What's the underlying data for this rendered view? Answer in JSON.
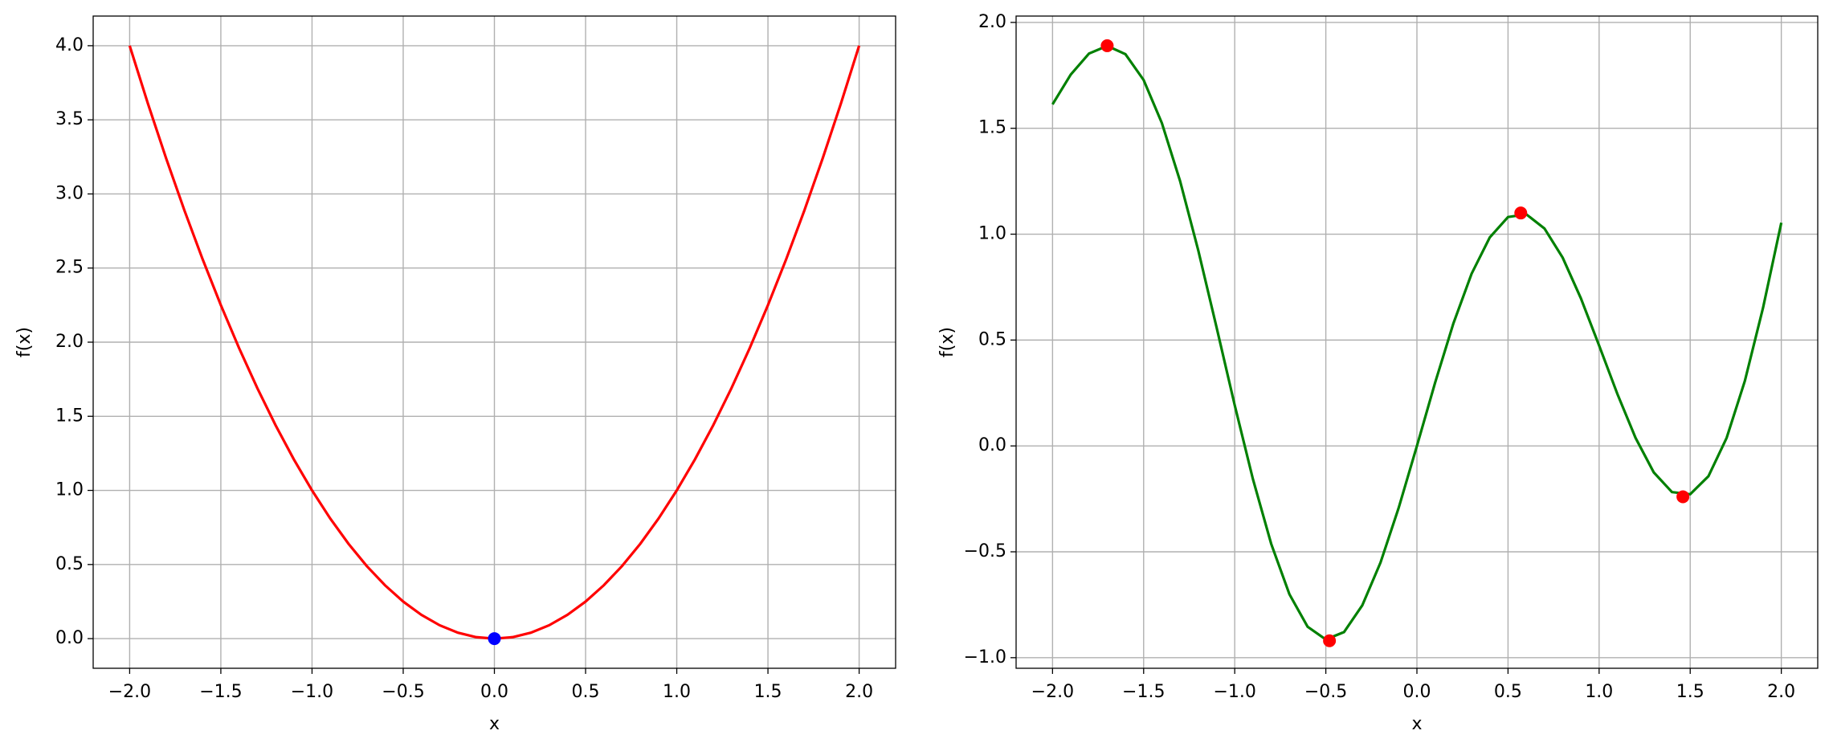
{
  "chart_data": [
    {
      "type": "line",
      "xlabel": "x",
      "ylabel": "f(x)",
      "grid": true,
      "xlim": [
        -2.2,
        2.2
      ],
      "ylim": [
        -0.2,
        4.2
      ],
      "xticks": [
        {
          "value": -2.0,
          "label": "−2.0"
        },
        {
          "value": -1.5,
          "label": "−1.5"
        },
        {
          "value": -1.0,
          "label": "−1.0"
        },
        {
          "value": -0.5,
          "label": "−0.5"
        },
        {
          "value": 0,
          "label": "0.0"
        },
        {
          "value": 0.5,
          "label": "0.5"
        },
        {
          "value": 1.0,
          "label": "1.0"
        },
        {
          "value": 1.5,
          "label": "1.5"
        },
        {
          "value": 2.0,
          "label": "2.0"
        }
      ],
      "yticks": [
        {
          "value": 0,
          "label": "0.0"
        },
        {
          "value": 0.5,
          "label": "0.5"
        },
        {
          "value": 1.0,
          "label": "1.0"
        },
        {
          "value": 1.5,
          "label": "1.5"
        },
        {
          "value": 2.0,
          "label": "2.0"
        },
        {
          "value": 2.5,
          "label": "2.5"
        },
        {
          "value": 3.0,
          "label": "3.0"
        },
        {
          "value": 3.5,
          "label": "3.5"
        },
        {
          "value": 4.0,
          "label": "4.0"
        }
      ],
      "series": [
        {
          "kind": "line",
          "color": "#ff0000",
          "x": [
            -2.0,
            -1.9,
            -1.8,
            -1.7,
            -1.6,
            -1.5,
            -1.4,
            -1.3,
            -1.2,
            -1.1,
            -1.0,
            -0.9,
            -0.8,
            -0.7,
            -0.6,
            -0.5,
            -0.4,
            -0.3,
            -0.2,
            -0.1,
            0,
            0.1,
            0.2,
            0.3,
            0.4,
            0.5,
            0.6,
            0.7,
            0.8,
            0.9,
            1.0,
            1.1,
            1.2,
            1.3,
            1.4,
            1.5,
            1.6,
            1.7,
            1.8,
            1.9,
            2.0
          ],
          "values": [
            4.0,
            3.61,
            3.24,
            2.89,
            2.56,
            2.25,
            1.96,
            1.69,
            1.44,
            1.21,
            1.0,
            0.81,
            0.64,
            0.49,
            0.36,
            0.25,
            0.16,
            0.09,
            0.04,
            0.01,
            0,
            0.01,
            0.04,
            0.09,
            0.16,
            0.25,
            0.36,
            0.49,
            0.64,
            0.81,
            1.0,
            1.21,
            1.44,
            1.69,
            1.96,
            2.25,
            2.56,
            2.89,
            3.24,
            3.61,
            4.0
          ]
        },
        {
          "kind": "scatter",
          "color": "#0000ff",
          "x": [
            0
          ],
          "values": [
            0
          ]
        }
      ]
    },
    {
      "type": "line",
      "xlabel": "x",
      "ylabel": "f(x)",
      "grid": true,
      "xlim": [
        -2.2,
        2.2
      ],
      "ylim": [
        -1.05,
        2.03
      ],
      "xticks": [
        {
          "value": -2.0,
          "label": "−2.0"
        },
        {
          "value": -1.5,
          "label": "−1.5"
        },
        {
          "value": -1.0,
          "label": "−1.0"
        },
        {
          "value": -0.5,
          "label": "−0.5"
        },
        {
          "value": 0,
          "label": "0.0"
        },
        {
          "value": 0.5,
          "label": "0.5"
        },
        {
          "value": 1.0,
          "label": "1.0"
        },
        {
          "value": 1.5,
          "label": "1.5"
        },
        {
          "value": 2.0,
          "label": "2.0"
        }
      ],
      "yticks": [
        {
          "value": -1.0,
          "label": "−1.0"
        },
        {
          "value": -0.5,
          "label": "−0.5"
        },
        {
          "value": 0,
          "label": "0.0"
        },
        {
          "value": 0.5,
          "label": "0.5"
        },
        {
          "value": 1.0,
          "label": "1.0"
        },
        {
          "value": 1.5,
          "label": "1.5"
        },
        {
          "value": 2.0,
          "label": "2.0"
        }
      ],
      "series": [
        {
          "kind": "line",
          "color": "#008000",
          "x": [
            -2.0,
            -1.9,
            -1.8,
            -1.7,
            -1.6,
            -1.5,
            -1.4,
            -1.3,
            -1.2,
            -1.1,
            -1.0,
            -0.9,
            -0.8,
            -0.7,
            -0.6,
            -0.5,
            -0.4,
            -0.3,
            -0.2,
            -0.1,
            0,
            0.1,
            0.2,
            0.3,
            0.4,
            0.5,
            0.6,
            0.7,
            0.8,
            0.9,
            1.0,
            1.1,
            1.2,
            1.3,
            1.4,
            1.5,
            1.6,
            1.7,
            1.8,
            1.9,
            2.0
          ],
          "values": [
            1.613,
            1.754,
            1.853,
            1.889,
            1.85,
            1.728,
            1.525,
            1.251,
            0.923,
            0.561,
            0.192,
            -0.157,
            -0.462,
            -0.7,
            -0.854,
            -0.914,
            -0.879,
            -0.753,
            -0.551,
            -0.292,
            0,
            0.299,
            0.578,
            0.813,
            0.985,
            1.081,
            1.094,
            1.027,
            0.889,
            0.697,
            0.474,
            0.246,
            0.038,
            -0.125,
            -0.218,
            -0.228,
            -0.143,
            0.038,
            0.307,
            0.653,
            1.054
          ]
        },
        {
          "kind": "scatter",
          "color": "#ff0000",
          "x": [
            -1.7,
            -0.48,
            0.57,
            1.46
          ],
          "values": [
            1.89,
            -0.92,
            1.1,
            -0.24
          ]
        }
      ]
    }
  ]
}
